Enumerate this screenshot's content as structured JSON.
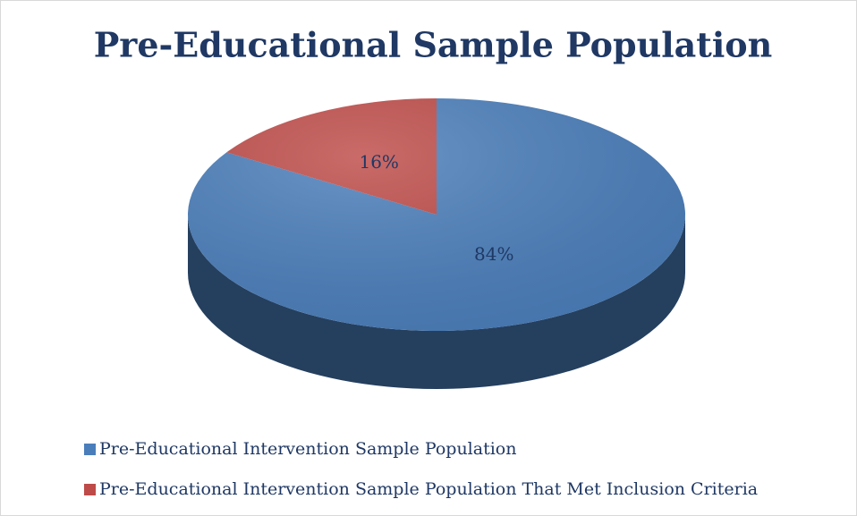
{
  "chart_data": {
    "type": "pie",
    "title": "Pre-Educational Sample Population",
    "categories": [
      "Pre-Educational Intervention Sample Population",
      "Pre-Educational Intervention Sample Population That Met Inclusion Criteria"
    ],
    "values": [
      84,
      16
    ],
    "value_labels": [
      "84%",
      "16%"
    ],
    "colors": [
      "#4a7ebb",
      "#be4b48"
    ],
    "legend": "bottom"
  }
}
